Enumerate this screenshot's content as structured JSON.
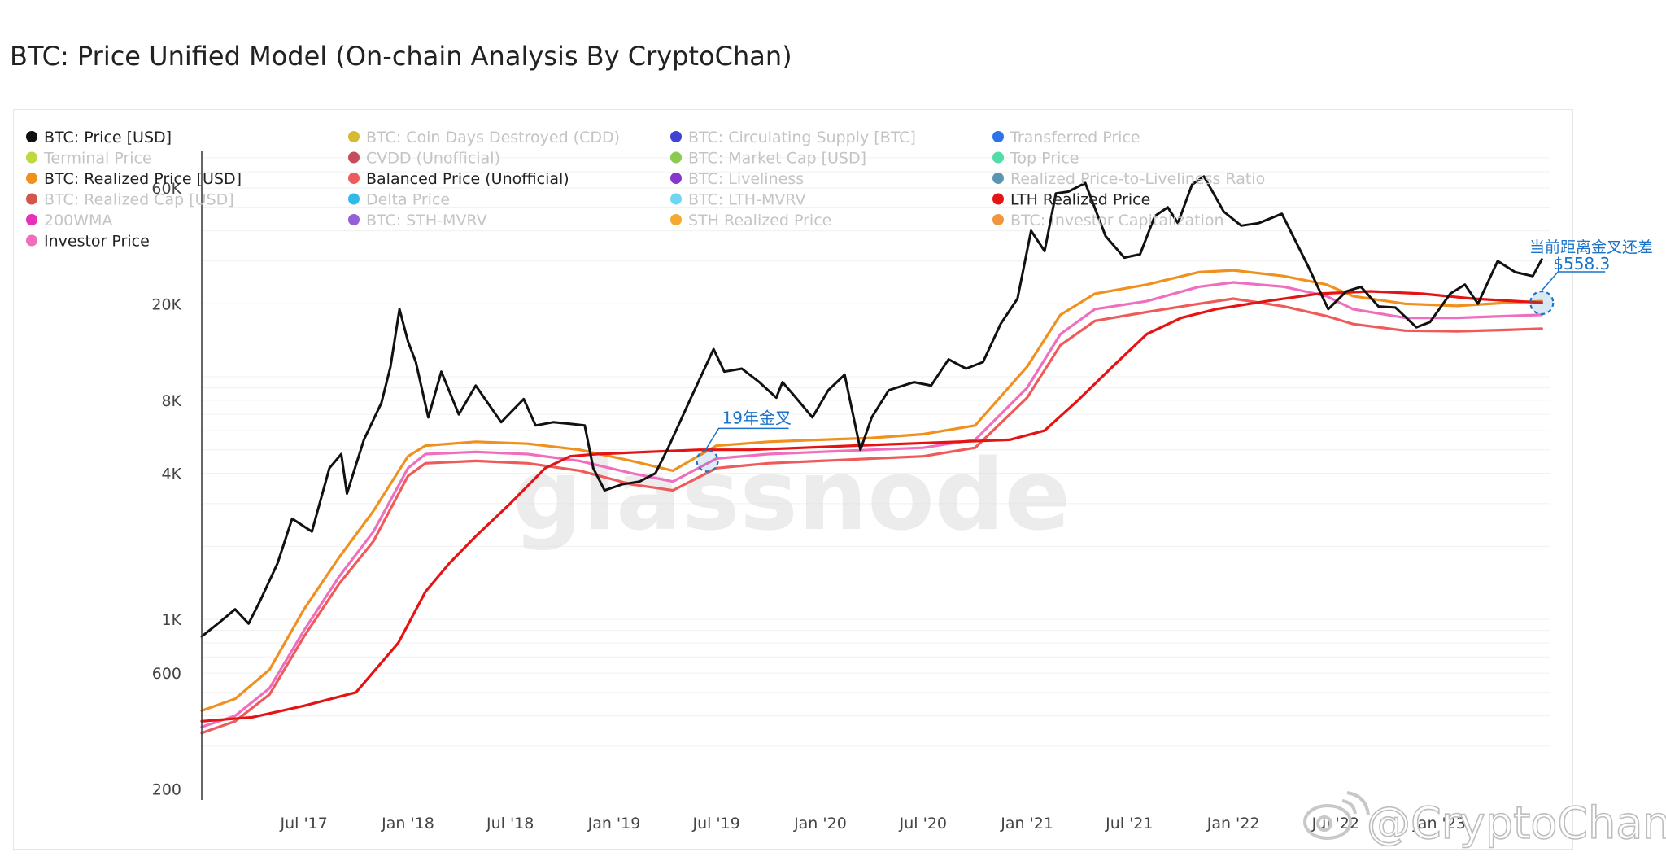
{
  "page": {
    "title": "BTC: Price Unified Model (On-chain Analysis By CryptoChan)"
  },
  "watermarks": {
    "glassnode": "glassnode",
    "author": "@CryptoChan"
  },
  "chart_data": {
    "type": "line",
    "yscale": "log",
    "ylim": [
      180,
      85000
    ],
    "xlim": [
      "2017-01-01",
      "2023-07-15"
    ],
    "y_ticks": [
      {
        "value": 200,
        "label": "200"
      },
      {
        "value": 600,
        "label": "600"
      },
      {
        "value": 1000,
        "label": "1K"
      },
      {
        "value": 4000,
        "label": "4K"
      },
      {
        "value": 8000,
        "label": "8K"
      },
      {
        "value": 20000,
        "label": "20K"
      },
      {
        "value": 60000,
        "label": "60K"
      }
    ],
    "x_ticks": [
      {
        "value": "2017-07-01",
        "label": "Jul '17"
      },
      {
        "value": "2018-01-01",
        "label": "Jan '18"
      },
      {
        "value": "2018-07-01",
        "label": "Jul '18"
      },
      {
        "value": "2019-01-01",
        "label": "Jan '19"
      },
      {
        "value": "2019-07-01",
        "label": "Jul '19"
      },
      {
        "value": "2020-01-01",
        "label": "Jan '20"
      },
      {
        "value": "2020-07-01",
        "label": "Jul '20"
      },
      {
        "value": "2021-01-01",
        "label": "Jan '21"
      },
      {
        "value": "2021-07-01",
        "label": "Jul '21"
      },
      {
        "value": "2022-01-01",
        "label": "Jan '22"
      },
      {
        "value": "2022-07-01",
        "label": "Jul '22"
      },
      {
        "value": "2023-01-01",
        "label": "Jan '23"
      }
    ],
    "legend": [
      {
        "name": "BTC: Price [USD]",
        "color": "#111111",
        "active": true
      },
      {
        "name": "BTC: Coin Days Destroyed (CDD)",
        "color": "#d4b21c",
        "active": false
      },
      {
        "name": "BTC: Circulating Supply [BTC]",
        "color": "#2a2fd0",
        "active": false
      },
      {
        "name": "Transferred Price",
        "color": "#1565e8",
        "active": false
      },
      {
        "name": "Terminal Price",
        "color": "#b5d62a",
        "active": false
      },
      {
        "name": "CVDD (Unofficial)",
        "color": "#c0394e",
        "active": false
      },
      {
        "name": "BTC: Market Cap [USD]",
        "color": "#7dc43e",
        "active": false
      },
      {
        "name": "Top Price",
        "color": "#3ed9a0",
        "active": false
      },
      {
        "name": "BTC: Realized Price [USD]",
        "color": "#f0901e",
        "active": true
      },
      {
        "name": "Balanced Price (Unofficial)",
        "color": "#ef5a5a",
        "active": true
      },
      {
        "name": "BTC: Liveliness",
        "color": "#7a1fc8",
        "active": false
      },
      {
        "name": "Realized Price-to-Liveliness Ratio",
        "color": "#4a8aa8",
        "active": false
      },
      {
        "name": "BTC: Realized Cap [USD]",
        "color": "#d0433a",
        "active": false
      },
      {
        "name": "Delta Price",
        "color": "#19b2e8",
        "active": false
      },
      {
        "name": "BTC: LTH-MVRV",
        "color": "#5fd0f0",
        "active": false
      },
      {
        "name": "LTH Realized Price",
        "color": "#e41414",
        "active": true
      },
      {
        "name": "200WMA",
        "color": "#e31bb0",
        "active": false
      },
      {
        "name": "BTC: STH-MVRV",
        "color": "#8a4ed0",
        "active": false
      },
      {
        "name": "STH Realized Price",
        "color": "#f4a01b",
        "active": false
      },
      {
        "name": "BTC: Investor Capitalization",
        "color": "#f08a2a",
        "active": false
      },
      {
        "name": "Investor Price",
        "color": "#ef6fbe",
        "active": true
      }
    ],
    "series": [
      {
        "name": "BTC: Price [USD]",
        "color": "#111111",
        "x": [
          "2017-01-01",
          "2017-02-01",
          "2017-03-01",
          "2017-03-25",
          "2017-04-15",
          "2017-05-15",
          "2017-06-10",
          "2017-07-15",
          "2017-08-15",
          "2017-09-05",
          "2017-09-15",
          "2017-10-15",
          "2017-11-15",
          "2017-12-01",
          "2017-12-17",
          "2018-01-01",
          "2018-01-15",
          "2018-02-06",
          "2018-03-01",
          "2018-04-01",
          "2018-05-01",
          "2018-06-15",
          "2018-07-25",
          "2018-08-15",
          "2018-09-15",
          "2018-10-15",
          "2018-11-10",
          "2018-11-25",
          "2018-12-15",
          "2019-01-15",
          "2019-02-15",
          "2019-03-15",
          "2019-04-05",
          "2019-05-15",
          "2019-06-26",
          "2019-07-15",
          "2019-08-15",
          "2019-09-15",
          "2019-10-15",
          "2019-10-26",
          "2019-11-15",
          "2019-12-18",
          "2020-01-15",
          "2020-02-13",
          "2020-03-12",
          "2020-04-01",
          "2020-05-01",
          "2020-06-15",
          "2020-07-15",
          "2020-08-15",
          "2020-09-15",
          "2020-10-15",
          "2020-11-15",
          "2020-12-15",
          "2021-01-08",
          "2021-02-01",
          "2021-02-21",
          "2021-03-15",
          "2021-04-14",
          "2021-05-20",
          "2021-06-22",
          "2021-07-20",
          "2021-08-15",
          "2021-09-07",
          "2021-09-25",
          "2021-10-20",
          "2021-11-10",
          "2021-12-15",
          "2022-01-15",
          "2022-02-15",
          "2022-03-28",
          "2022-05-12",
          "2022-06-18",
          "2022-07-20",
          "2022-08-15",
          "2022-09-15",
          "2022-10-15",
          "2022-11-21",
          "2022-12-15",
          "2023-01-20",
          "2023-02-15",
          "2023-03-10",
          "2023-04-14",
          "2023-05-15",
          "2023-06-15",
          "2023-07-01"
        ],
        "y": [
          850,
          970,
          1100,
          960,
          1200,
          1700,
          2600,
          2300,
          4200,
          4800,
          3300,
          5500,
          7800,
          11000,
          19000,
          14000,
          11500,
          6800,
          10500,
          7000,
          9200,
          6500,
          8100,
          6300,
          6500,
          6400,
          6300,
          4200,
          3400,
          3600,
          3700,
          4000,
          5000,
          8000,
          13000,
          10500,
          10800,
          9500,
          8200,
          9500,
          8400,
          6800,
          8800,
          10200,
          5000,
          6800,
          8800,
          9500,
          9200,
          11800,
          10800,
          11500,
          16500,
          21000,
          40000,
          33000,
          57000,
          58000,
          63000,
          38000,
          31000,
          32000,
          46000,
          50000,
          43000,
          62000,
          67000,
          48000,
          42000,
          43000,
          47000,
          29000,
          19000,
          22500,
          23500,
          19500,
          19300,
          16000,
          16800,
          22000,
          24000,
          20000,
          30000,
          27000,
          26000,
          30500
        ]
      },
      {
        "name": "BTC: Realized Price [USD]",
        "color": "#f0901e",
        "x": [
          "2017-01-01",
          "2017-03-01",
          "2017-05-01",
          "2017-07-01",
          "2017-09-01",
          "2017-11-01",
          "2018-01-01",
          "2018-02-01",
          "2018-05-01",
          "2018-08-01",
          "2018-11-01",
          "2019-02-01",
          "2019-04-15",
          "2019-07-01",
          "2019-10-01",
          "2020-01-01",
          "2020-04-01",
          "2020-07-01",
          "2020-10-01",
          "2021-01-01",
          "2021-03-01",
          "2021-05-01",
          "2021-08-01",
          "2021-11-01",
          "2022-01-01",
          "2022-04-01",
          "2022-06-15",
          "2022-08-01",
          "2022-11-01",
          "2023-02-01",
          "2023-05-01",
          "2023-07-01"
        ],
        "y": [
          420,
          470,
          620,
          1100,
          1800,
          2800,
          4700,
          5200,
          5400,
          5300,
          5000,
          4500,
          4100,
          5200,
          5400,
          5500,
          5600,
          5800,
          6300,
          11000,
          18000,
          22000,
          24000,
          27000,
          27500,
          26000,
          24000,
          21500,
          20000,
          19600,
          20200,
          20500
        ]
      },
      {
        "name": "Investor Price",
        "color": "#ef6fbe",
        "x": [
          "2017-01-01",
          "2017-03-01",
          "2017-05-01",
          "2017-07-01",
          "2017-09-01",
          "2017-11-01",
          "2018-01-01",
          "2018-02-01",
          "2018-05-01",
          "2018-08-01",
          "2018-11-01",
          "2019-02-01",
          "2019-04-15",
          "2019-07-01",
          "2019-10-01",
          "2020-01-01",
          "2020-04-01",
          "2020-07-01",
          "2020-10-01",
          "2021-01-01",
          "2021-03-01",
          "2021-05-01",
          "2021-08-01",
          "2021-11-01",
          "2022-01-01",
          "2022-04-01",
          "2022-06-15",
          "2022-08-01",
          "2022-11-01",
          "2023-02-01",
          "2023-05-01",
          "2023-07-01"
        ],
        "y": [
          360,
          400,
          520,
          900,
          1500,
          2300,
          4200,
          4800,
          4900,
          4800,
          4500,
          4000,
          3700,
          4600,
          4800,
          4900,
          5000,
          5100,
          5500,
          9000,
          15000,
          19000,
          20500,
          23500,
          24500,
          23500,
          21500,
          19000,
          17500,
          17500,
          17800,
          18000
        ]
      },
      {
        "name": "Balanced Price (Unofficial)",
        "color": "#ef5a5a",
        "x": [
          "2017-01-01",
          "2017-03-01",
          "2017-05-01",
          "2017-07-01",
          "2017-09-01",
          "2017-11-01",
          "2018-01-01",
          "2018-02-01",
          "2018-05-01",
          "2018-08-01",
          "2018-11-01",
          "2019-02-01",
          "2019-04-15",
          "2019-07-01",
          "2019-10-01",
          "2020-01-01",
          "2020-04-01",
          "2020-07-01",
          "2020-10-01",
          "2021-01-01",
          "2021-03-01",
          "2021-05-01",
          "2021-08-01",
          "2021-11-01",
          "2022-01-01",
          "2022-04-01",
          "2022-06-15",
          "2022-08-01",
          "2022-11-01",
          "2023-02-01",
          "2023-05-01",
          "2023-07-01"
        ],
        "y": [
          340,
          380,
          490,
          850,
          1400,
          2100,
          3900,
          4400,
          4500,
          4400,
          4100,
          3600,
          3400,
          4200,
          4400,
          4500,
          4600,
          4700,
          5100,
          8200,
          13500,
          17000,
          18500,
          20000,
          21000,
          19500,
          17800,
          16500,
          15500,
          15400,
          15600,
          15800
        ]
      },
      {
        "name": "LTH Realized Price",
        "color": "#e41414",
        "x": [
          "2017-01-01",
          "2017-04-01",
          "2017-07-01",
          "2017-10-01",
          "2017-12-15",
          "2018-02-01",
          "2018-03-15",
          "2018-05-01",
          "2018-07-01",
          "2018-09-01",
          "2018-10-15",
          "2018-12-01",
          "2019-03-01",
          "2019-06-01",
          "2019-09-01",
          "2019-12-01",
          "2020-03-01",
          "2020-06-01",
          "2020-09-01",
          "2020-12-01",
          "2021-02-01",
          "2021-04-01",
          "2021-06-01",
          "2021-08-01",
          "2021-10-01",
          "2021-12-01",
          "2022-03-01",
          "2022-06-01",
          "2022-09-01",
          "2022-12-01",
          "2023-03-01",
          "2023-07-01"
        ],
        "y": [
          380,
          395,
          440,
          500,
          800,
          1300,
          1700,
          2200,
          3000,
          4200,
          4700,
          4800,
          4900,
          5000,
          5000,
          5100,
          5200,
          5300,
          5400,
          5500,
          6000,
          8000,
          11000,
          15000,
          17500,
          19000,
          20500,
          22000,
          22500,
          22000,
          21000,
          20200
        ]
      }
    ],
    "annotations": [
      {
        "text": "19年金叉",
        "x": "2019-06-15",
        "y": 4500
      },
      {
        "text": "当前距离金叉还差",
        "x": "2023-07-01",
        "y": 20200
      },
      {
        "text": "$558.3",
        "x": "2023-07-01",
        "y": 20200
      }
    ]
  }
}
